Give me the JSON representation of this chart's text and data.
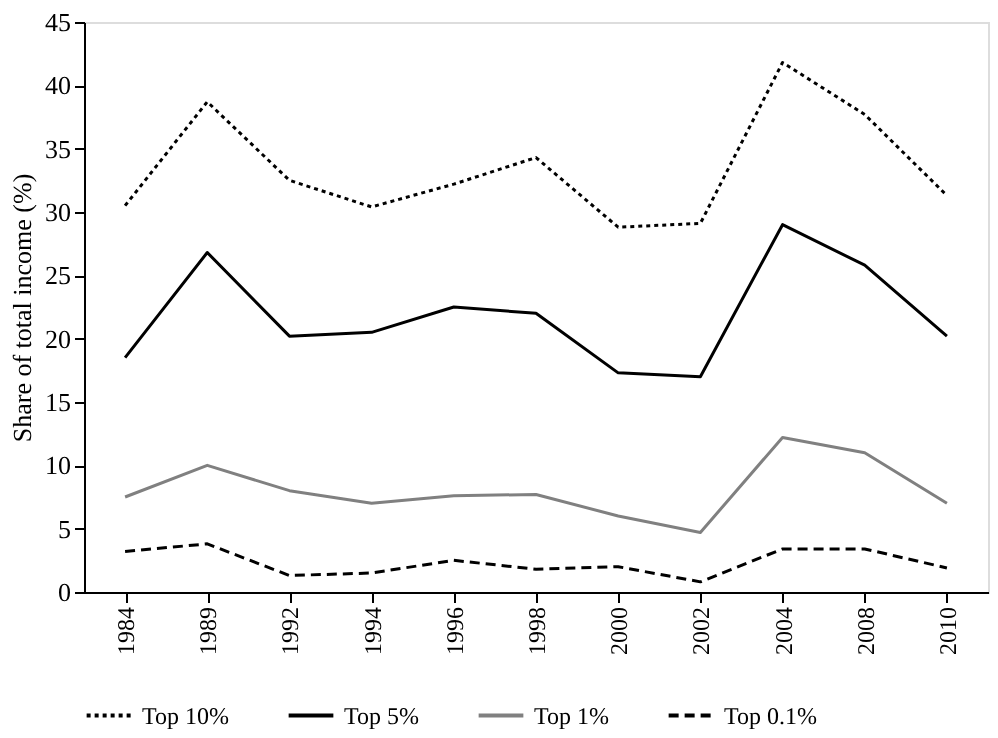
{
  "chart_data": {
    "type": "line",
    "ylabel": "Share of total income (%)",
    "categories": [
      "1984",
      "1989",
      "1992",
      "1994",
      "1996",
      "1998",
      "2000",
      "2002",
      "2004",
      "2008",
      "2010"
    ],
    "series": [
      {
        "name": "Top 10%",
        "color": "#000000",
        "line_style": "dotted",
        "values": [
          30.5,
          38.7,
          32.5,
          30.4,
          32.2,
          34.3,
          28.8,
          29.1,
          41.8,
          37.7,
          31.3
        ]
      },
      {
        "name": "Top 5%",
        "color": "#000000",
        "line_style": "solid",
        "values": [
          18.5,
          26.8,
          20.2,
          20.5,
          22.5,
          22.0,
          17.3,
          17.0,
          29.0,
          25.8,
          20.2
        ]
      },
      {
        "name": "Top 1%",
        "color": "#808080",
        "line_style": "solid",
        "values": [
          7.5,
          10.0,
          8.0,
          7.0,
          7.6,
          7.7,
          6.0,
          4.7,
          12.2,
          11.0,
          7.0
        ]
      },
      {
        "name": "Top 0.1%",
        "color": "#000000",
        "line_style": "dashed",
        "values": [
          3.2,
          3.8,
          1.3,
          1.5,
          2.5,
          1.8,
          2.0,
          0.8,
          3.4,
          3.4,
          1.9
        ]
      }
    ],
    "ylim": [
      0,
      45
    ],
    "yticks": [
      0,
      5,
      10,
      15,
      20,
      25,
      30,
      35,
      40,
      45
    ],
    "grid": false,
    "legend": "bottom",
    "marker": "none"
  }
}
